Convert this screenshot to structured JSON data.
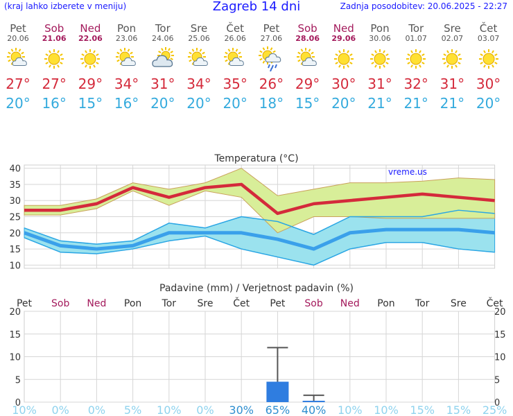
{
  "header": {
    "left": "(kraj lahko izberete v meniju)",
    "title": "Zagreb 14 dni",
    "updated": "Zadnja posodobitev: 20.06.2025 - 22:27"
  },
  "days": [
    {
      "name": "Pet",
      "date": "20.06",
      "weekend": false,
      "icon": "sun-cloud-icon",
      "tmax": "27°",
      "tmin": "20°"
    },
    {
      "name": "Sob",
      "date": "21.06",
      "weekend": true,
      "icon": "sun-icon",
      "tmax": "27°",
      "tmin": "16°"
    },
    {
      "name": "Ned",
      "date": "22.06",
      "weekend": true,
      "icon": "sun-icon",
      "tmax": "29°",
      "tmin": "15°"
    },
    {
      "name": "Pon",
      "date": "23.06",
      "weekend": false,
      "icon": "sun-cloud-icon",
      "tmax": "34°",
      "tmin": "16°"
    },
    {
      "name": "Tor",
      "date": "24.06",
      "weekend": false,
      "icon": "cloud-sun-icon",
      "tmax": "31°",
      "tmin": "20°"
    },
    {
      "name": "Sre",
      "date": "25.06",
      "weekend": false,
      "icon": "sun-cloud-icon",
      "tmax": "34°",
      "tmin": "20°"
    },
    {
      "name": "Čet",
      "date": "26.06",
      "weekend": false,
      "icon": "sun-cloud-icon",
      "tmax": "35°",
      "tmin": "20°"
    },
    {
      "name": "Pet",
      "date": "27.06",
      "weekend": false,
      "icon": "sun-rain-icon",
      "tmax": "26°",
      "tmin": "18°"
    },
    {
      "name": "Sob",
      "date": "28.06",
      "weekend": true,
      "icon": "sun-cloud-icon",
      "tmax": "29°",
      "tmin": "15°"
    },
    {
      "name": "Ned",
      "date": "29.06",
      "weekend": true,
      "icon": "sun-icon",
      "tmax": "30°",
      "tmin": "20°"
    },
    {
      "name": "Pon",
      "date": "30.06",
      "weekend": false,
      "icon": "sun-icon",
      "tmax": "31°",
      "tmin": "21°"
    },
    {
      "name": "Tor",
      "date": "01.07",
      "weekend": false,
      "icon": "sun-icon",
      "tmax": "32°",
      "tmin": "21°"
    },
    {
      "name": "Sre",
      "date": "02.07",
      "weekend": false,
      "icon": "sun-icon",
      "tmax": "31°",
      "tmin": "21°"
    },
    {
      "name": "Čet",
      "date": "03.07",
      "weekend": false,
      "icon": "sun-icon",
      "tmax": "30°",
      "tmin": "20°"
    }
  ],
  "colors": {
    "max": "#d42a3b",
    "min": "#33aadd",
    "maxBand": "#d8ee99",
    "minBand": "#9be2ee",
    "bar": "#2f7de0",
    "weekend": "#a3195b",
    "prob": "#8fd3ee"
  },
  "chart_data": [
    {
      "type": "line",
      "title": "Temperatura (°C)",
      "watermark": "vreme.us",
      "ylim": [
        9,
        41
      ],
      "yticks": [
        10,
        15,
        20,
        25,
        30,
        35,
        40
      ],
      "grid": true,
      "series": [
        {
          "name": "max",
          "values": [
            27,
            27,
            29,
            34,
            31,
            34,
            35,
            26,
            29,
            30,
            31,
            32,
            31,
            30
          ]
        },
        {
          "name": "max_low",
          "values": [
            25.5,
            25.5,
            27.5,
            33,
            28.5,
            33,
            31,
            20,
            25,
            25,
            24.5,
            24.5,
            24.5,
            24.5
          ]
        },
        {
          "name": "max_high",
          "values": [
            28.5,
            28.5,
            30.5,
            35.5,
            33.5,
            35.5,
            40,
            31.5,
            33.5,
            35.5,
            35.5,
            36,
            37,
            36.5
          ]
        },
        {
          "name": "min",
          "values": [
            20,
            16,
            15,
            16,
            20,
            20,
            20,
            18,
            15,
            20,
            21,
            21,
            21,
            20
          ]
        },
        {
          "name": "min_low",
          "values": [
            18.5,
            14,
            13.5,
            15,
            17.5,
            19,
            15,
            12.5,
            10,
            15,
            17,
            17,
            15,
            14
          ]
        },
        {
          "name": "min_high",
          "values": [
            21.5,
            17.5,
            16.5,
            17.5,
            23,
            21.5,
            25,
            23.5,
            19.5,
            25,
            25,
            25,
            27,
            26
          ]
        }
      ]
    },
    {
      "type": "bar",
      "title": "Padavine (mm) / Verjetnost padavin (%)",
      "categories": [
        "Pet",
        "Sob",
        "Ned",
        "Pon",
        "Tor",
        "Sre",
        "Čet",
        "Pet",
        "Sob",
        "Ned",
        "Pon",
        "Tor",
        "Sre",
        "Čet"
      ],
      "weekend": [
        false,
        true,
        true,
        false,
        false,
        false,
        false,
        false,
        true,
        true,
        false,
        false,
        false,
        false
      ],
      "ylim": [
        0,
        20
      ],
      "yticks": [
        0,
        5,
        10,
        15,
        20
      ],
      "values": [
        0,
        0,
        0,
        0,
        0,
        0,
        0,
        4.5,
        0.3,
        0,
        0,
        0,
        0,
        0
      ],
      "error_high": [
        0,
        0,
        0,
        0,
        0,
        0,
        0,
        12,
        1.5,
        0,
        0,
        0,
        0,
        0
      ],
      "probability": [
        "10%",
        "0%",
        "0%",
        "5%",
        "10%",
        "0%",
        "30%",
        "65%",
        "40%",
        "10%",
        "10%",
        "15%",
        "15%",
        "25%"
      ],
      "probability_strong": [
        false,
        false,
        false,
        false,
        false,
        false,
        true,
        true,
        true,
        false,
        false,
        false,
        false,
        false
      ]
    }
  ]
}
